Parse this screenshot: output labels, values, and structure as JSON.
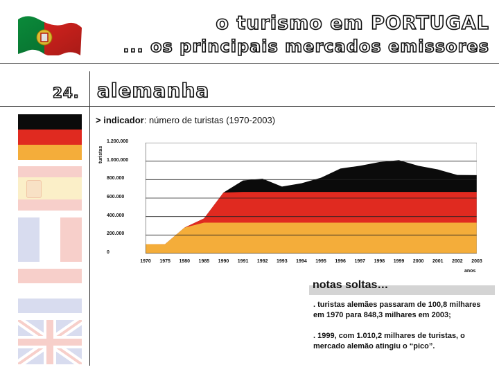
{
  "header": {
    "title_line1": "o turismo em PORTUGAL",
    "title_line2": "... os principais mercados emissores",
    "flag_icon": "portugal-flag-icon"
  },
  "section": {
    "number": "24.",
    "country": "alemanha"
  },
  "indicator": {
    "prefix": "> indicador",
    "text": ": número de turistas (1970-2003)"
  },
  "sidebar_flags": [
    {
      "name": "germany-flag-icon",
      "faded": false
    },
    {
      "name": "spain-flag-icon",
      "faded": true
    },
    {
      "name": "france-flag-icon",
      "faded": true
    },
    {
      "name": "netherlands-flag-icon",
      "faded": true
    },
    {
      "name": "uk-flag-icon",
      "faded": true
    }
  ],
  "colors": {
    "black": "#0b0b0b",
    "red": "#e02a20",
    "gold": "#f4ad3a",
    "faded_red": "#f7cfca",
    "faded_yellow": "#fbefc8",
    "faded_blue": "#d8dcef"
  },
  "chart_data": {
    "type": "area",
    "ylabel": "turistas",
    "xlabel": "anos",
    "ylim": [
      0,
      1200000
    ],
    "y_ticks": [
      "0",
      "200.000",
      "400.000",
      "600.000",
      "800.000",
      "1.000.000",
      "1.200.000"
    ],
    "y_tick_values": [
      0,
      200000,
      400000,
      600000,
      800000,
      1000000,
      1200000
    ],
    "categories": [
      "1970",
      "1975",
      "1980",
      "1985",
      "1990",
      "1991",
      "1992",
      "1993",
      "1994",
      "1995",
      "1996",
      "1997",
      "1998",
      "1999",
      "2000",
      "2001",
      "2002",
      "2003"
    ],
    "values": [
      100800,
      100000,
      280000,
      380000,
      660000,
      790000,
      810000,
      725000,
      760000,
      820000,
      920000,
      950000,
      990000,
      1010200,
      950000,
      910000,
      850000,
      848300
    ]
  },
  "notes": {
    "title": "notas soltas…",
    "items": [
      ". turistas alemães passaram de 100,8 milhares em 1970 para 848,3 milhares em 2003;",
      ". 1999, com 1.010,2 milhares de turistas, o mercado alemão atingiu o “pico”."
    ]
  }
}
